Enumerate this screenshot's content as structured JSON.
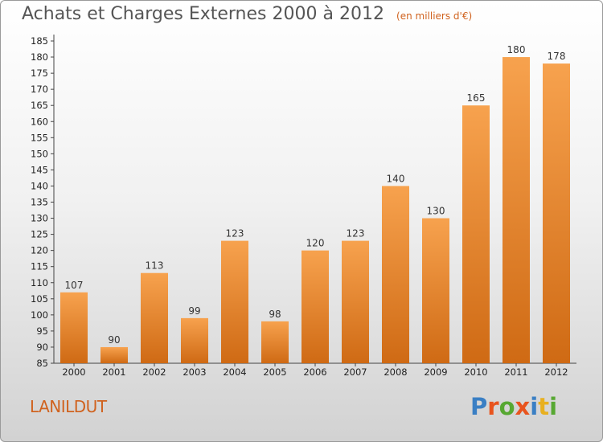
{
  "header": {
    "title": "Achats et Charges Externes 2000 à 2012",
    "unit": "(en milliers d'€)"
  },
  "footer": {
    "commune": "LANILDUT",
    "logo_text": "Proxiti"
  },
  "colors": {
    "bar_top": "#f7a24e",
    "bar_bottom": "#cf6a14",
    "accent": "#d0621e",
    "logo_letters": [
      "#3a7fc4",
      "#e8541e",
      "#57a832",
      "#e8541e",
      "#3a7fc4",
      "#e8b020",
      "#57a832"
    ]
  },
  "chart_data": {
    "type": "bar",
    "title": "Achats et Charges Externes 2000 à 2012",
    "subtitle": "(en milliers d'€)",
    "categories": [
      "2000",
      "2001",
      "2002",
      "2003",
      "2004",
      "2005",
      "2006",
      "2007",
      "2008",
      "2009",
      "2010",
      "2011",
      "2012"
    ],
    "values": [
      107,
      90,
      113,
      99,
      123,
      98,
      120,
      123,
      140,
      130,
      165,
      180,
      178
    ],
    "ylim": [
      85,
      185
    ],
    "ytick_step": 5,
    "grid": false,
    "legend": "none"
  }
}
